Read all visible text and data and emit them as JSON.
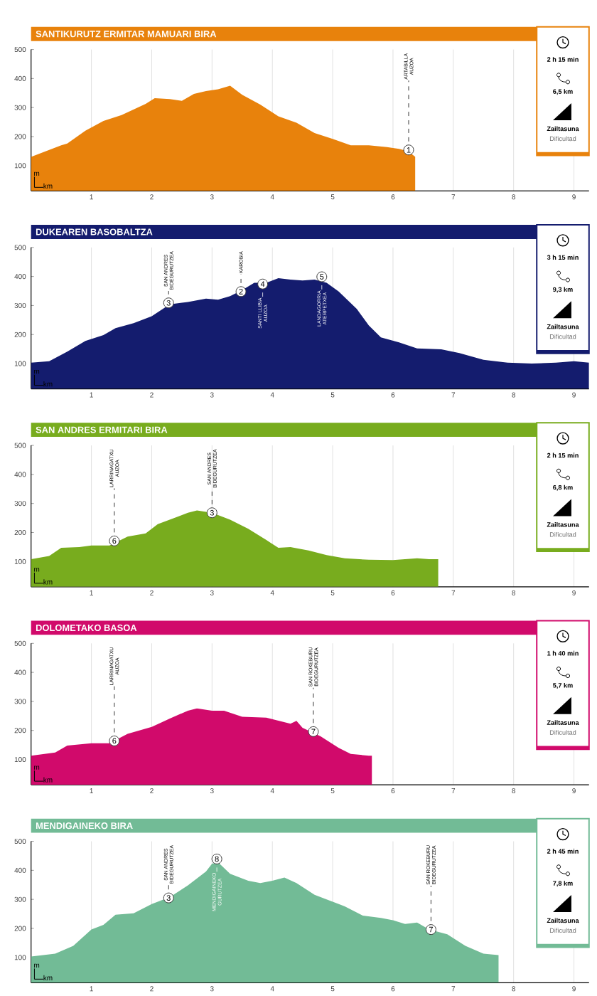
{
  "chart_data": [
    {
      "type": "area",
      "title": "SANTIKURUTZ ERMITAR MAMUARI BIRA",
      "xlabel": "km",
      "ylabel": "m",
      "xlim": [
        0,
        9.25
      ],
      "ylim": [
        13,
        500
      ],
      "xticks": [
        1,
        2,
        3,
        4,
        5,
        6,
        7,
        8,
        9
      ],
      "yticks": [
        100,
        200,
        300,
        400,
        500
      ],
      "grid": "x",
      "annotations": [
        "2 h 15 min",
        "6,5 km",
        "Zailtasuna",
        "Dificultad",
        {
          "text": "1",
          "x": 6.26,
          "y": 154
        },
        {
          "text": "ARTABILLA AUZOA",
          "x": 6.26,
          "y": 154
        }
      ],
      "series": [
        {
          "color": "#e8820c",
          "x": [
            0,
            0.3,
            0.5,
            0.6,
            0.9,
            1.2,
            1.5,
            1.9,
            2.05,
            2.3,
            2.5,
            2.7,
            2.9,
            3.1,
            3.3,
            3.5,
            3.8,
            4.1,
            4.4,
            4.7,
            5.0,
            5.3,
            5.6,
            5.9,
            6.1,
            6.25,
            6.37
          ],
          "values": [
            130,
            154,
            170,
            176,
            220,
            254,
            274,
            313,
            332,
            329,
            323,
            347,
            357,
            363,
            375,
            344,
            310,
            270,
            248,
            212,
            192,
            170,
            170,
            164,
            158,
            150,
            130
          ]
        }
      ]
    },
    {
      "type": "area",
      "title": "DUKEAREN BASOBALTZA",
      "xlabel": "km",
      "ylabel": "m",
      "xlim": [
        0,
        9.25
      ],
      "ylim": [
        13,
        500
      ],
      "xticks": [
        1,
        2,
        3,
        4,
        5,
        6,
        7,
        8,
        9
      ],
      "yticks": [
        100,
        200,
        300,
        400,
        500
      ],
      "grid": "x",
      "annotations": [
        "3 h 15 min",
        "9,3 km",
        "Zailtasuna",
        "Dificultad",
        {
          "text": "3",
          "x": 2.28,
          "y": 309
        },
        {
          "text": "SAN ANDRES BIDEGURUTZEA",
          "x": 2.28,
          "y": 309
        },
        {
          "text": "2",
          "x": 3.48,
          "y": 348
        },
        {
          "text": "KAROBIA",
          "x": 3.48,
          "y": 348
        },
        {
          "text": "4",
          "x": 3.84,
          "y": 374
        },
        {
          "text": "SANTI LLIBIA AUZOA",
          "x": 3.84,
          "y": 374
        },
        {
          "text": "5",
          "x": 4.82,
          "y": 399
        },
        {
          "text": "LANDAGORRIA ATERPETXEA",
          "x": 4.82,
          "y": 399
        }
      ],
      "series": [
        {
          "color": "#141c6e",
          "x": [
            0,
            0.3,
            0.6,
            0.9,
            1.2,
            1.4,
            1.7,
            2.0,
            2.3,
            2.6,
            2.9,
            3.1,
            3.3,
            3.5,
            3.7,
            3.9,
            4.1,
            4.3,
            4.5,
            4.7,
            4.9,
            5.1,
            5.4,
            5.6,
            5.8,
            6.1,
            6.4,
            6.8,
            7.1,
            7.5,
            7.9,
            8.3,
            8.7,
            9.0,
            9.25
          ],
          "values": [
            103,
            108,
            141,
            178,
            198,
            222,
            239,
            263,
            304,
            312,
            324,
            320,
            332,
            353,
            378,
            378,
            394,
            389,
            386,
            389,
            378,
            348,
            288,
            231,
            190,
            173,
            152,
            149,
            136,
            113,
            103,
            100,
            103,
            108,
            103
          ]
        }
      ]
    },
    {
      "type": "area",
      "title": "SAN ANDRES ERMITARI BIRA",
      "xlabel": "km",
      "ylabel": "m",
      "xlim": [
        0,
        9.25
      ],
      "ylim": [
        13,
        500
      ],
      "xticks": [
        1,
        2,
        3,
        4,
        5,
        6,
        7,
        8,
        9
      ],
      "yticks": [
        100,
        200,
        300,
        400,
        500
      ],
      "grid": "x",
      "annotations": [
        "2 h 15 min",
        "6,8 km",
        "Zailtasuna",
        "Dificultad",
        {
          "text": "6",
          "x": 1.38,
          "y": 171
        },
        {
          "text": "LARRINAGATXU AUZOA",
          "x": 1.38,
          "y": 171
        },
        {
          "text": "3",
          "x": 3.0,
          "y": 268
        },
        {
          "text": "SAN ANDRES BIDEGURUTZEA",
          "x": 3.0,
          "y": 268
        }
      ],
      "series": [
        {
          "color": "#78ac1e",
          "x": [
            0,
            0.3,
            0.5,
            0.8,
            1.0,
            1.3,
            1.6,
            1.9,
            2.1,
            2.4,
            2.6,
            2.75,
            3.0,
            3.3,
            3.6,
            3.9,
            4.1,
            4.3,
            4.6,
            4.9,
            5.2,
            5.6,
            6.0,
            6.4,
            6.6,
            6.75
          ],
          "values": [
            108,
            119,
            147,
            150,
            155,
            155,
            186,
            197,
            229,
            252,
            268,
            276,
            268,
            244,
            213,
            174,
            147,
            150,
            138,
            122,
            111,
            106,
            105,
            111,
            108,
            108
          ]
        }
      ]
    },
    {
      "type": "area",
      "title": "DOLOMETAKO BASOA",
      "xlabel": "km",
      "ylabel": "m",
      "xlim": [
        0,
        9.25
      ],
      "ylim": [
        13,
        500
      ],
      "xticks": [
        1,
        2,
        3,
        4,
        5,
        6,
        7,
        8,
        9
      ],
      "yticks": [
        100,
        200,
        300,
        400,
        500
      ],
      "grid": "x",
      "annotations": [
        "1 h 40 min",
        "5,7 km",
        "Zailtasuna",
        "Dificultad",
        {
          "text": "6",
          "x": 1.38,
          "y": 164
        },
        {
          "text": "LARRINAGATXU AUZOA",
          "x": 1.38,
          "y": 164
        },
        {
          "text": "7",
          "x": 4.68,
          "y": 196
        },
        {
          "text": "SAN ROKEBURU BIDEGURUTZEA",
          "x": 4.68,
          "y": 196
        }
      ],
      "series": [
        {
          "color": "#d10a6b",
          "x": [
            0,
            0.4,
            0.6,
            1.0,
            1.3,
            1.6,
            2.0,
            2.3,
            2.6,
            2.75,
            3.0,
            3.2,
            3.5,
            3.9,
            4.3,
            4.4,
            4.5,
            4.8,
            5.1,
            5.3,
            5.6,
            5.65
          ],
          "values": [
            113,
            124,
            148,
            156,
            156,
            188,
            212,
            241,
            268,
            276,
            268,
            268,
            247,
            244,
            223,
            233,
            209,
            180,
            140,
            119,
            113,
            113
          ]
        }
      ]
    },
    {
      "type": "area",
      "title": "MENDIGAINEKO BIRA",
      "xlabel": "km",
      "ylabel": "m",
      "xlim": [
        0,
        9.25
      ],
      "ylim": [
        13,
        500
      ],
      "xticks": [
        1,
        2,
        3,
        4,
        5,
        6,
        7,
        8,
        9
      ],
      "yticks": [
        100,
        200,
        300,
        400,
        500
      ],
      "grid": "x",
      "annotations": [
        "2 h 45 min",
        "7,8 km",
        "Zailtasuna",
        "Dificultad",
        {
          "text": "3",
          "x": 2.28,
          "y": 305
        },
        {
          "text": "SAN ANDRES BIDEGURUTZEA",
          "x": 2.28,
          "y": 305
        },
        {
          "text": "8",
          "x": 3.08,
          "y": 439
        },
        {
          "text": "MENDIGAINEKO GURUTZEA",
          "x": 3.08,
          "y": 439
        },
        {
          "text": "7",
          "x": 6.63,
          "y": 196
        },
        {
          "text": "SAN ROKEBURU BIDEGURUTZEA",
          "x": 6.63,
          "y": 196
        }
      ],
      "series": [
        {
          "color": "#72bb96",
          "x": [
            0,
            0.4,
            0.7,
            1.0,
            1.2,
            1.4,
            1.7,
            2.0,
            2.3,
            2.6,
            2.9,
            3.0,
            3.1,
            3.3,
            3.6,
            3.8,
            4.0,
            4.2,
            4.4,
            4.7,
            4.9,
            5.2,
            5.5,
            5.8,
            6.0,
            6.2,
            6.4,
            6.6,
            6.9,
            7.2,
            7.5,
            7.75
          ],
          "values": [
            103,
            113,
            140,
            196,
            212,
            247,
            252,
            284,
            308,
            348,
            396,
            423,
            428,
            388,
            364,
            356,
            364,
            375,
            356,
            316,
            300,
            276,
            244,
            236,
            228,
            215,
            220,
            196,
            180,
            140,
            113,
            108
          ]
        }
      ]
    }
  ]
}
